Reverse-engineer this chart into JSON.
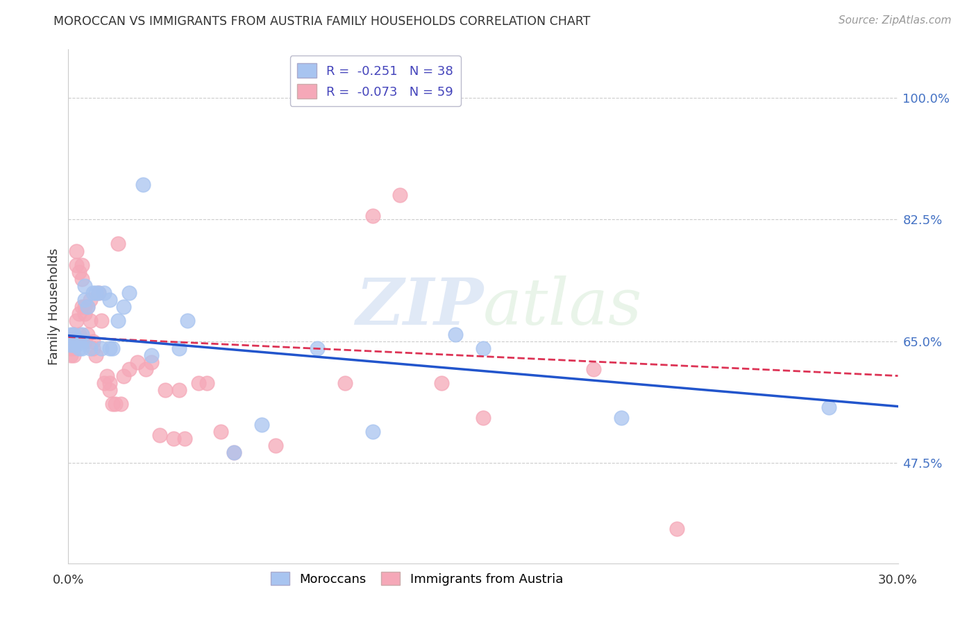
{
  "title": "MOROCCAN VS IMMIGRANTS FROM AUSTRIA FAMILY HOUSEHOLDS CORRELATION CHART",
  "source": "Source: ZipAtlas.com",
  "ylabel": "Family Households",
  "yticks": [
    0.475,
    0.65,
    0.825,
    1.0
  ],
  "ytick_labels": [
    "47.5%",
    "65.0%",
    "82.5%",
    "100.0%"
  ],
  "xmin": 0.0,
  "xmax": 0.3,
  "ymin": 0.33,
  "ymax": 1.07,
  "legend_blue_label": "R =  -0.251   N = 38",
  "legend_pink_label": "R =  -0.073   N = 59",
  "blue_color": "#a8c4f0",
  "pink_color": "#f5a8b8",
  "blue_line_color": "#2255cc",
  "pink_line_color": "#dd3355",
  "watermark_zip": "ZIP",
  "watermark_atlas": "atlas",
  "moroccans_label": "Moroccans",
  "austria_label": "Immigrants from Austria",
  "blue_x": [
    0.001,
    0.001,
    0.002,
    0.002,
    0.003,
    0.003,
    0.004,
    0.004,
    0.005,
    0.005,
    0.005,
    0.006,
    0.006,
    0.007,
    0.008,
    0.009,
    0.01,
    0.011,
    0.012,
    0.013,
    0.015,
    0.015,
    0.016,
    0.018,
    0.02,
    0.022,
    0.027,
    0.03,
    0.04,
    0.043,
    0.06,
    0.07,
    0.09,
    0.11,
    0.14,
    0.15,
    0.2,
    0.275
  ],
  "blue_y": [
    0.645,
    0.66,
    0.66,
    0.645,
    0.65,
    0.645,
    0.64,
    0.65,
    0.65,
    0.64,
    0.66,
    0.71,
    0.73,
    0.7,
    0.64,
    0.72,
    0.72,
    0.72,
    0.64,
    0.72,
    0.71,
    0.64,
    0.64,
    0.68,
    0.7,
    0.72,
    0.875,
    0.63,
    0.64,
    0.68,
    0.49,
    0.53,
    0.64,
    0.52,
    0.66,
    0.64,
    0.54,
    0.555
  ],
  "pink_x": [
    0.001,
    0.001,
    0.001,
    0.001,
    0.002,
    0.002,
    0.002,
    0.002,
    0.003,
    0.003,
    0.003,
    0.004,
    0.004,
    0.004,
    0.005,
    0.005,
    0.005,
    0.006,
    0.006,
    0.006,
    0.007,
    0.007,
    0.008,
    0.008,
    0.009,
    0.009,
    0.01,
    0.011,
    0.012,
    0.013,
    0.014,
    0.015,
    0.015,
    0.016,
    0.017,
    0.018,
    0.019,
    0.02,
    0.022,
    0.025,
    0.028,
    0.03,
    0.033,
    0.035,
    0.038,
    0.04,
    0.042,
    0.047,
    0.05,
    0.055,
    0.06,
    0.075,
    0.1,
    0.11,
    0.12,
    0.135,
    0.15,
    0.19,
    0.22
  ],
  "pink_y": [
    0.65,
    0.64,
    0.63,
    0.645,
    0.66,
    0.65,
    0.64,
    0.63,
    0.78,
    0.76,
    0.68,
    0.75,
    0.69,
    0.66,
    0.76,
    0.74,
    0.7,
    0.69,
    0.7,
    0.65,
    0.7,
    0.66,
    0.71,
    0.68,
    0.64,
    0.65,
    0.63,
    0.72,
    0.68,
    0.59,
    0.6,
    0.58,
    0.59,
    0.56,
    0.56,
    0.79,
    0.56,
    0.6,
    0.61,
    0.62,
    0.61,
    0.62,
    0.515,
    0.58,
    0.51,
    0.58,
    0.51,
    0.59,
    0.59,
    0.52,
    0.49,
    0.5,
    0.59,
    0.83,
    0.86,
    0.59,
    0.54,
    0.61,
    0.38
  ],
  "blue_trend_x": [
    0.0,
    0.3
  ],
  "blue_trend_y": [
    0.658,
    0.556
  ],
  "pink_trend_x": [
    0.0,
    0.3
  ],
  "pink_trend_y": [
    0.656,
    0.6
  ]
}
